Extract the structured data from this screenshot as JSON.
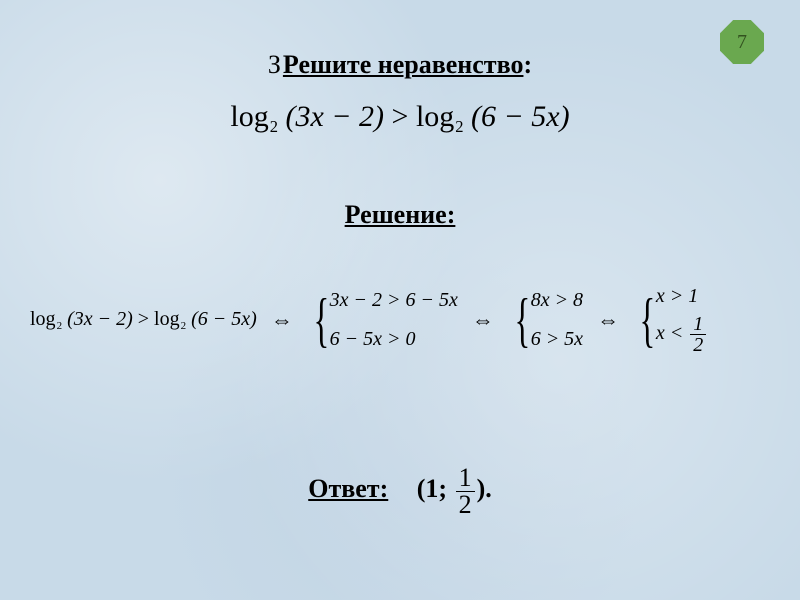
{
  "page": {
    "number": "7",
    "badge_color": "#6aa84f"
  },
  "title": {
    "task_number": "З",
    "text": "Решите неравенство",
    "colon": ":"
  },
  "main_inequality": {
    "lhs_func": "log",
    "lhs_base": "2",
    "lhs_arg": "(3x − 2)",
    "op": ">",
    "rhs_func": "log",
    "rhs_base": "2",
    "rhs_arg": "(6 − 5x)"
  },
  "solution_label": "Решение:",
  "iff": "⇔",
  "sol": {
    "step0": {
      "lhs_func": "log",
      "lhs_base": "2",
      "lhs_arg": "(3x − 2)",
      "op": ">",
      "rhs_func": "log",
      "rhs_base": "2",
      "rhs_arg": "(6 − 5x)"
    },
    "sys1": {
      "r1": "3x − 2 > 6 − 5x",
      "r2": "6 − 5x > 0"
    },
    "sys2": {
      "r1": "8x > 8",
      "r2": "6 > 5x"
    },
    "sys3": {
      "r1": "x > 1",
      "r2_prefix": "x <",
      "r2_frac_num": "1",
      "r2_frac_den": "2"
    }
  },
  "answer": {
    "label": "Ответ:",
    "open": "(1;",
    "frac_num": "1",
    "frac_den": "2",
    "close": ")."
  },
  "style": {
    "background": "#c8dae8",
    "text_color": "#000000",
    "title_fontsize": 26,
    "formula_fontsize": 30,
    "solution_fontsize": 20,
    "font_family": "Times New Roman"
  }
}
